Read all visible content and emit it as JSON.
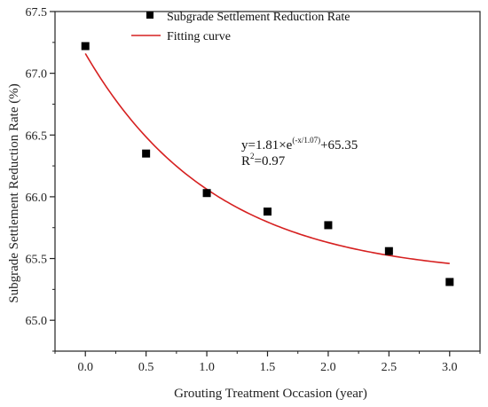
{
  "chart_data": {
    "type": "scatter",
    "xlabel": "Grouting Treatment Occasion (year)",
    "ylabel": "Subgrade Settlement Reduction Rate (%)",
    "xlim": [
      -0.25,
      3.25
    ],
    "ylim": [
      64.75,
      67.5
    ],
    "xticks": [
      0.0,
      0.5,
      1.0,
      1.5,
      2.0,
      2.5,
      3.0
    ],
    "xtick_labels": [
      "0.0",
      "0.5",
      "1.0",
      "1.5",
      "2.0",
      "2.5",
      "3.0"
    ],
    "yticks": [
      65.0,
      65.5,
      66.0,
      66.5,
      67.0,
      67.5
    ],
    "ytick_labels": [
      "65.0",
      "65.5",
      "66.0",
      "66.5",
      "67.0",
      "67.5"
    ],
    "legend_position": "top-right",
    "grid": false,
    "series": [
      {
        "name": "Subgrade Settlement Reduction Rate",
        "kind": "scatter",
        "marker": "square",
        "color": "#000000",
        "x": [
          0.0,
          0.5,
          1.0,
          1.5,
          2.0,
          2.5,
          3.0
        ],
        "y": [
          67.22,
          66.35,
          66.03,
          65.88,
          65.77,
          65.56,
          65.31
        ]
      },
      {
        "name": "Fitting curve",
        "kind": "line",
        "color": "#d62020",
        "model": {
          "a": 1.81,
          "t": 1.07,
          "c": 65.35
        }
      }
    ],
    "annotations": {
      "equation_main": "y=1.81×e",
      "equation_exp": "(-x/1.07)",
      "equation_tail": "+65.35",
      "r2_prefix": "R",
      "r2_sup": "2",
      "r2_value": "=0.97"
    }
  }
}
